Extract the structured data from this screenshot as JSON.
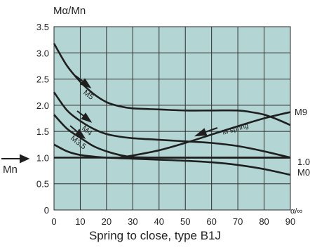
{
  "chart_data": {
    "type": "line",
    "title": "Spring to close, type B1J",
    "ylabel": "Mα/Mn",
    "xlabel": "α/∞",
    "xlim": [
      0,
      90
    ],
    "ylim": [
      0,
      3.5
    ],
    "xticks": [
      "0",
      "10",
      "20",
      "30",
      "40",
      "50",
      "60",
      "70",
      "80",
      "90"
    ],
    "yticks": [
      "0",
      "0.5",
      "1.0",
      "1.5",
      "2.0",
      "2.5",
      "3.0",
      "3.5"
    ],
    "grid": true,
    "series": [
      {
        "name": "M5",
        "x": [
          0,
          5,
          10,
          15,
          20,
          25,
          30,
          40,
          50,
          60,
          70,
          75,
          80,
          85,
          90
        ],
        "y": [
          3.18,
          2.75,
          2.45,
          2.22,
          2.06,
          1.98,
          1.94,
          1.92,
          1.9,
          1.9,
          1.9,
          1.87,
          1.82,
          1.73,
          1.62
        ]
      },
      {
        "name": "M4",
        "x": [
          0,
          5,
          10,
          15,
          20,
          25,
          30,
          40,
          50,
          60,
          70,
          80,
          90
        ],
        "y": [
          2.25,
          1.9,
          1.7,
          1.55,
          1.45,
          1.4,
          1.37,
          1.34,
          1.31,
          1.28,
          1.22,
          1.12,
          1.0
        ]
      },
      {
        "name": "M3.5",
        "x": [
          0,
          5,
          10,
          15,
          20,
          25,
          30,
          40,
          50,
          60,
          70,
          80,
          90
        ],
        "y": [
          1.82,
          1.55,
          1.38,
          1.22,
          1.12,
          1.05,
          1.01,
          1.0,
          1.0,
          1.0,
          1.0,
          1.0,
          1.0
        ]
      },
      {
        "name": "M spring",
        "x": [
          25,
          30,
          40,
          50,
          60,
          70,
          80,
          90
        ],
        "y": [
          1.0,
          1.04,
          1.14,
          1.28,
          1.44,
          1.6,
          1.75,
          1.87
        ]
      },
      {
        "name": "M0",
        "x": [
          0,
          5,
          10,
          15,
          20,
          30,
          40,
          50,
          60,
          70,
          80,
          90
        ],
        "y": [
          1.25,
          1.12,
          1.05,
          1.02,
          1.0,
          0.98,
          0.96,
          0.94,
          0.91,
          0.86,
          0.78,
          0.67
        ]
      },
      {
        "name": "Mn",
        "x": [
          0,
          90
        ],
        "y": [
          1.0,
          1.0
        ]
      }
    ],
    "annotations": {
      "m5": "M5",
      "m4": "M4",
      "m35": "M3.5",
      "mspring": "M spring",
      "m9": "M9",
      "one": "1.0",
      "m0": "M0",
      "mn": "Mn"
    }
  },
  "colors": {
    "plot_bg": "#b3d6d5",
    "line": "#1f1f1f",
    "grid": "#2b2b2b"
  }
}
